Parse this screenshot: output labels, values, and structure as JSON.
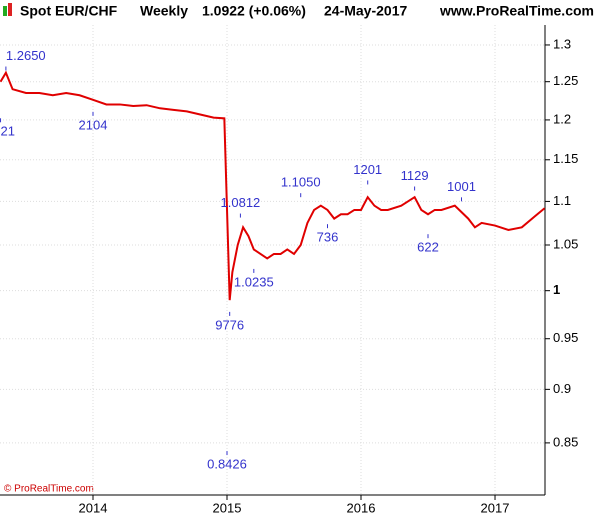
{
  "chart_data": {
    "type": "line",
    "title": "Spot EUR/CHF",
    "period": "Weekly",
    "last_quote": "1.0922 (+0.06%)",
    "date": "24-May-2017",
    "source": "www.ProRealTime.com",
    "copyright": "© ProRealTime.com",
    "log_scale": true,
    "grid": true,
    "xlim": [
      2013.306,
      2017.373
    ],
    "xticks": [
      2014,
      2015,
      2016,
      2017
    ],
    "ylim": [
      0.804,
      1.328
    ],
    "yticks": [
      1.3,
      1.25,
      1.2,
      1.15,
      1.1,
      1.05,
      1,
      0.95,
      0.9,
      0.85
    ],
    "series": [
      {
        "name": "EUR/CHF",
        "color": "#e00000",
        "x": [
          2013.31,
          2013.35,
          2013.4,
          2013.5,
          2013.6,
          2013.7,
          2013.8,
          2013.9,
          2014.0,
          2014.1,
          2014.2,
          2014.3,
          2014.4,
          2014.5,
          2014.6,
          2014.7,
          2014.8,
          2014.9,
          2014.98,
          2015.02,
          2015.04,
          2015.08,
          2015.12,
          2015.16,
          2015.2,
          2015.25,
          2015.3,
          2015.35,
          2015.4,
          2015.45,
          2015.5,
          2015.55,
          2015.6,
          2015.65,
          2015.7,
          2015.75,
          2015.8,
          2015.85,
          2015.9,
          2015.95,
          2016.0,
          2016.05,
          2016.1,
          2016.15,
          2016.2,
          2016.3,
          2016.35,
          2016.4,
          2016.45,
          2016.5,
          2016.55,
          2016.6,
          2016.7,
          2016.8,
          2016.85,
          2016.9,
          2017.0,
          2017.1,
          2017.2,
          2017.3,
          2017.37
        ],
        "values": [
          1.25,
          1.262,
          1.24,
          1.235,
          1.235,
          1.232,
          1.235,
          1.232,
          1.226,
          1.22,
          1.22,
          1.218,
          1.219,
          1.215,
          1.213,
          1.211,
          1.207,
          1.203,
          1.202,
          0.99,
          1.02,
          1.05,
          1.07,
          1.06,
          1.045,
          1.04,
          1.035,
          1.04,
          1.04,
          1.045,
          1.04,
          1.05,
          1.075,
          1.09,
          1.095,
          1.09,
          1.08,
          1.085,
          1.085,
          1.09,
          1.09,
          1.105,
          1.095,
          1.09,
          1.09,
          1.095,
          1.1,
          1.105,
          1.09,
          1.085,
          1.09,
          1.09,
          1.095,
          1.08,
          1.07,
          1.075,
          1.072,
          1.067,
          1.07,
          1.083,
          1.092
        ]
      }
    ],
    "annotations": [
      {
        "x": 2013.35,
        "value": 1.265,
        "label": "1.2650"
      },
      {
        "x": 2013.31,
        "value": 1.2021,
        "label": "21"
      },
      {
        "x": 2014.0,
        "value": 1.2104,
        "label": "2104"
      },
      {
        "x": 2015.1,
        "value": 1.0812,
        "label": "1.0812"
      },
      {
        "x": 2015.2,
        "value": 1.0235,
        "label": "1.0235"
      },
      {
        "x": 2015.02,
        "value": 0.9776,
        "label": "9776"
      },
      {
        "x": 2015.0,
        "value": 0.8426,
        "label": "0.8426"
      },
      {
        "x": 2015.55,
        "value": 1.105,
        "label": "1.1050"
      },
      {
        "x": 2015.75,
        "value": 1.0736,
        "label": "736"
      },
      {
        "x": 2016.05,
        "value": 1.1201,
        "label": "1201"
      },
      {
        "x": 2016.4,
        "value": 1.1129,
        "label": "1129"
      },
      {
        "x": 2016.5,
        "value": 1.0622,
        "label": "622"
      },
      {
        "x": 2016.75,
        "value": 1.1001,
        "label": "1001"
      }
    ]
  }
}
